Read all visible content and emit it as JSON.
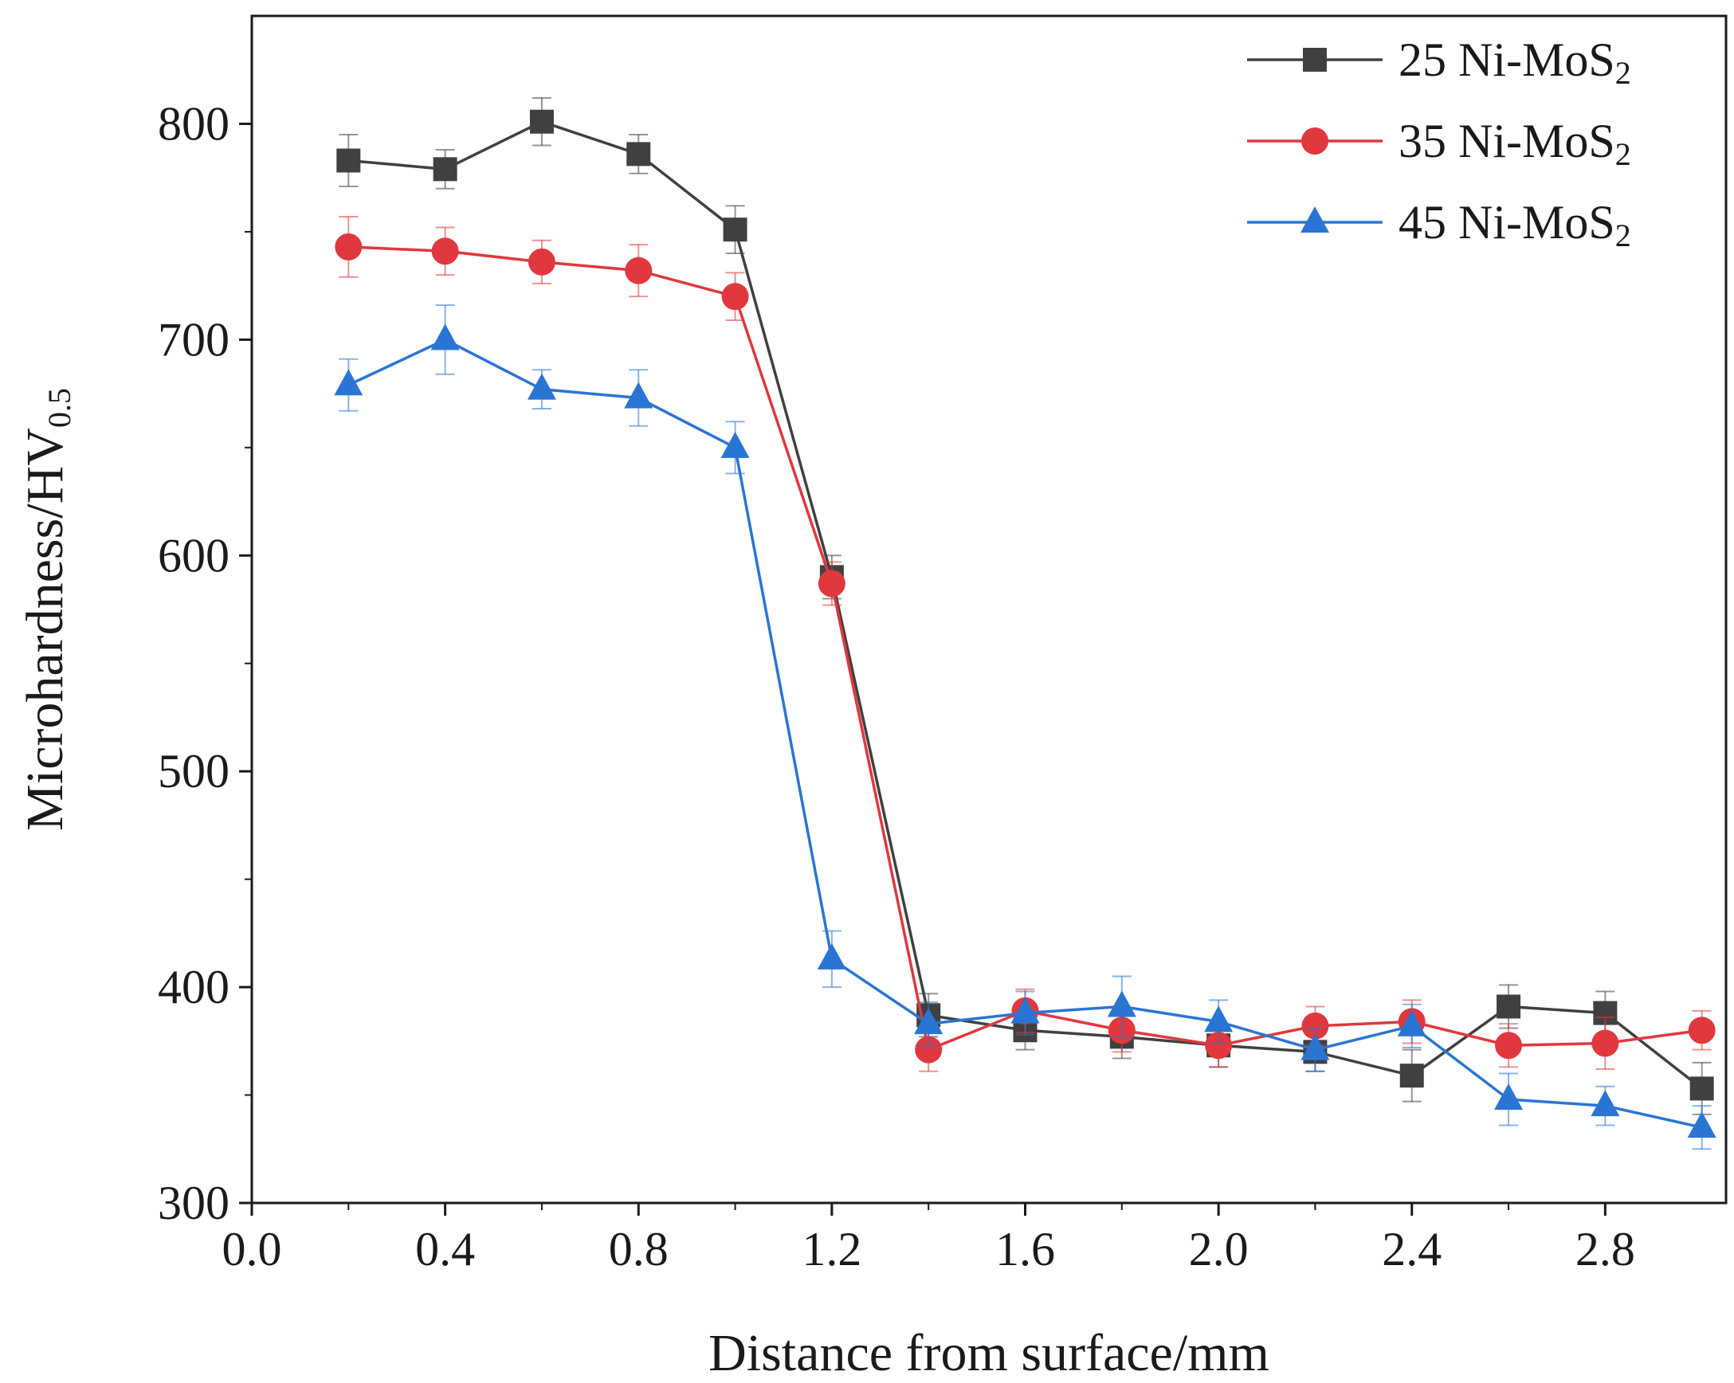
{
  "chart_data": {
    "type": "line",
    "xlabel": "Distance from surface/mm",
    "ylabel": {
      "main": "Microhardness/HV",
      "sub": "0.5"
    },
    "xlim": [
      0.0,
      3.05
    ],
    "ylim": [
      300,
      850
    ],
    "x_ticks": [
      0.0,
      0.4,
      0.8,
      1.2,
      1.6,
      2.0,
      2.4,
      2.8
    ],
    "x_tick_labels": [
      "0.0",
      "0.4",
      "0.8",
      "1.2",
      "1.6",
      "2.0",
      "2.4",
      "2.8"
    ],
    "y_ticks": [
      300,
      400,
      500,
      600,
      700,
      800
    ],
    "y_tick_labels": [
      "300",
      "400",
      "500",
      "600",
      "700",
      "800"
    ],
    "legend_position": "top-right",
    "x": [
      0.2,
      0.4,
      0.6,
      0.8,
      1.0,
      1.2,
      1.4,
      1.6,
      1.8,
      2.0,
      2.2,
      2.4,
      2.6,
      2.8,
      3.0
    ],
    "series": [
      {
        "name": "25 Ni-MoS",
        "name_sub": "2",
        "color": "#404040",
        "marker": "square",
        "values": [
          783,
          779,
          801,
          786,
          751,
          590,
          387,
          380,
          377,
          373,
          370,
          359,
          391,
          388,
          353
        ],
        "errors": [
          12,
          9,
          11,
          9,
          11,
          10,
          10,
          9,
          10,
          10,
          9,
          12,
          10,
          10,
          12
        ]
      },
      {
        "name": "35 Ni-MoS",
        "name_sub": "2",
        "color": "#e0383e",
        "marker": "circle",
        "values": [
          743,
          741,
          736,
          732,
          720,
          587,
          371,
          389,
          380,
          373,
          382,
          384,
          373,
          374,
          380
        ],
        "errors": [
          14,
          11,
          10,
          12,
          11,
          10,
          10,
          10,
          10,
          10,
          9,
          10,
          10,
          12,
          9
        ]
      },
      {
        "name": "45 Ni-MoS",
        "name_sub": "2",
        "color": "#2a74d4",
        "marker": "triangle",
        "values": [
          679,
          700,
          677,
          673,
          650,
          413,
          383,
          388,
          391,
          384,
          371,
          382,
          348,
          345,
          335
        ],
        "errors": [
          12,
          16,
          9,
          13,
          12,
          13,
          10,
          10,
          14,
          10,
          10,
          10,
          12,
          9,
          10
        ]
      }
    ]
  }
}
